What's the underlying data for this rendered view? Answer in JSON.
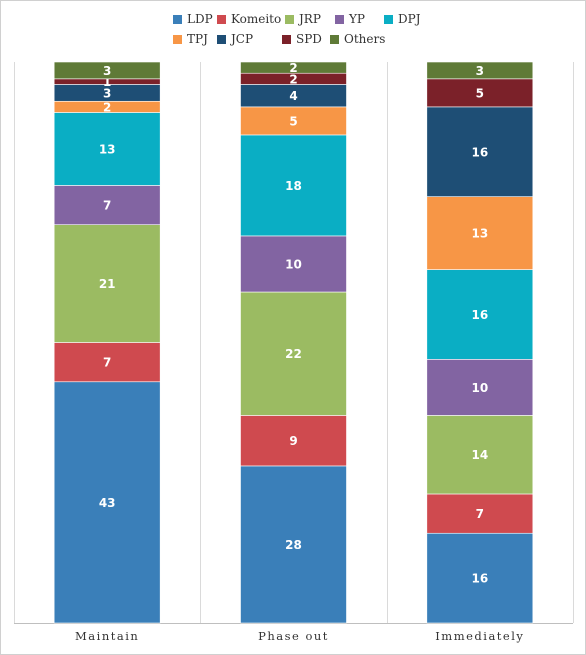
{
  "chart_data": {
    "type": "bar",
    "stacked": true,
    "categories": [
      "Maintain",
      "Phase out",
      "Immediately"
    ],
    "series": [
      {
        "name": "LDP",
        "color": "#3a7fb9",
        "values": [
          43,
          28,
          16
        ]
      },
      {
        "name": "Komeito",
        "color": "#cf4a4f",
        "values": [
          7,
          9,
          7
        ]
      },
      {
        "name": "JRP",
        "color": "#9bbb62",
        "values": [
          21,
          22,
          14
        ]
      },
      {
        "name": "YP",
        "color": "#8264a2",
        "values": [
          7,
          10,
          10
        ]
      },
      {
        "name": "DPJ",
        "color": "#0aaec4",
        "values": [
          13,
          18,
          16
        ]
      },
      {
        "name": "TPJ",
        "color": "#f79646",
        "values": [
          2,
          5,
          13
        ]
      },
      {
        "name": "JCP",
        "color": "#1e4e75",
        "values": [
          3,
          4,
          16
        ]
      },
      {
        "name": "SPD",
        "color": "#7b2129",
        "values": [
          1,
          2,
          5
        ]
      },
      {
        "name": "Others",
        "color": "#5f7a37",
        "values": [
          3,
          2,
          3
        ]
      }
    ],
    "ylim": [
      0,
      100
    ],
    "grid": "vertical separators between categories",
    "legend_position": "top",
    "data_labels": true
  }
}
